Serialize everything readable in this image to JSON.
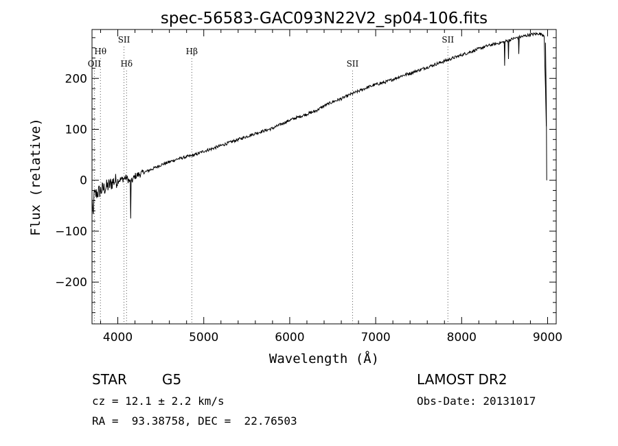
{
  "chart_data": {
    "type": "line",
    "title": "spec-56583-GAC093N22V2_sp04-106.fits",
    "xlabel": "Wavelength (Å)",
    "ylabel": "Flux (relative)",
    "xlim": [
      3700,
      9100
    ],
    "ylim": [
      -282,
      296
    ],
    "x_ticks": [
      "4000",
      "5000",
      "6000",
      "7000",
      "8000",
      "9000"
    ],
    "y_ticks": [
      "−200",
      "−100",
      "0",
      "100",
      "200"
    ],
    "grid": false,
    "series": [
      {
        "x": [
          3700,
          3730,
          3760,
          3800,
          3850,
          3900,
          3950,
          4000,
          4050,
          4100,
          4150,
          4200,
          4300,
          4400,
          4500,
          4600,
          4700,
          4800,
          4900,
          5000,
          5100,
          5200,
          5300,
          5400,
          5500,
          5600,
          5700,
          5800,
          5900,
          6000,
          6100,
          6200,
          6300,
          6400,
          6500,
          6600,
          6700,
          6800,
          6900,
          7000,
          7100,
          7200,
          7300,
          7400,
          7500,
          7600,
          7700,
          7800,
          7900,
          8000,
          8100,
          8200,
          8300,
          8400,
          8500,
          8600,
          8700,
          8800,
          8900,
          8960,
          9000
        ],
        "y": [
          -40,
          -30,
          -25,
          -20,
          -15,
          -10,
          -2,
          0,
          2,
          5,
          -5,
          8,
          15,
          22,
          30,
          36,
          42,
          46,
          50,
          57,
          62,
          68,
          74,
          80,
          86,
          92,
          97,
          102,
          110,
          118,
          124,
          130,
          136,
          146,
          154,
          160,
          168,
          175,
          182,
          188,
          192,
          198,
          205,
          210,
          216,
          222,
          228,
          234,
          240,
          246,
          252,
          258,
          264,
          268,
          272,
          278,
          282,
          286,
          288,
          285,
          0
        ]
      }
    ],
    "line_markers": [
      {
        "name": "OII",
        "x": 3727,
        "row": 3
      },
      {
        "name": "Hθ",
        "x": 3798,
        "row": 2
      },
      {
        "name": "SII",
        "x": 4072,
        "row": 1
      },
      {
        "name": "Hδ",
        "x": 4102,
        "row": 3
      },
      {
        "name": "Hβ",
        "x": 4861,
        "row": 2
      },
      {
        "name": "SII",
        "x": 6731,
        "row": 3
      },
      {
        "name": "SII",
        "x": 7840,
        "row": 1
      }
    ]
  },
  "info": {
    "class": "STAR",
    "subclass": "G5",
    "survey": "LAMOST DR2",
    "cz": "cz = 12.1 ± 2.2 km/s",
    "obs_date": "Obs-Date: 20131017",
    "coords": "RA =  93.38758, DEC =  22.76503"
  }
}
